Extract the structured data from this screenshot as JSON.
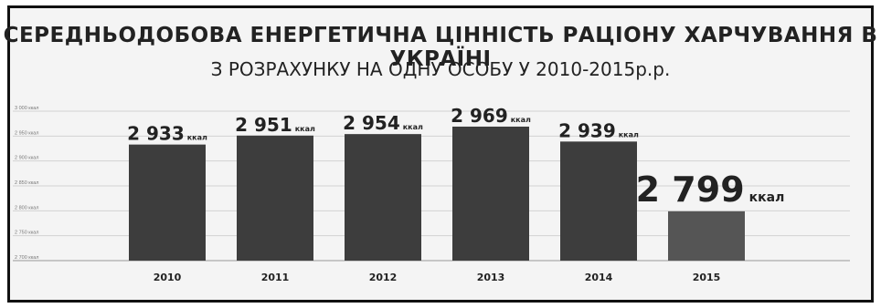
{
  "title": "СЕРЕДНЬОДОБОВА ЕНЕРГЕТИЧНА ЦІННІСТЬ РАЦІОНУ ХАРЧУВАННЯ В УКРАЇНІ",
  "subtitle": "З РОЗРАХУНКУ НА ОДНУ ОСОБУ У 2010-2015р.р.",
  "colors": {
    "bar": "#3d3d3d",
    "bar_highlight": "#555555",
    "grid": "#d2d2d2",
    "text": "#222222"
  },
  "chart_data": {
    "type": "bar",
    "title": "СЕРЕДНЬОДОБОВА ЕНЕРГЕТИЧНА ЦІННІСТЬ РАЦІОНУ ХАРЧУВАННЯ В УКРАЇНІ",
    "subtitle": "З РОЗРАХУНКУ НА ОДНУ ОСОБУ У 2010-2015р.р.",
    "categories": [
      "2010",
      "2011",
      "2012",
      "2013",
      "2014",
      "2015"
    ],
    "values": [
      2933,
      2951,
      2954,
      2969,
      2939,
      2799
    ],
    "value_labels": [
      "2 933",
      "2 951",
      "2 954",
      "2 969",
      "2 939",
      "2 799"
    ],
    "unit": "ккал",
    "ylim": [
      2700,
      3000
    ],
    "yticks": [
      2700,
      2750,
      2800,
      2850,
      2900,
      2950,
      3000
    ],
    "ytick_labels": [
      "2 700 ккал",
      "2 750 ккал",
      "2 800 ккал",
      "2 850 ккал",
      "2 900 ккал",
      "2 950 ккал",
      "3 000 ккал"
    ],
    "grid": true,
    "legend": "none",
    "highlight_last": true
  }
}
